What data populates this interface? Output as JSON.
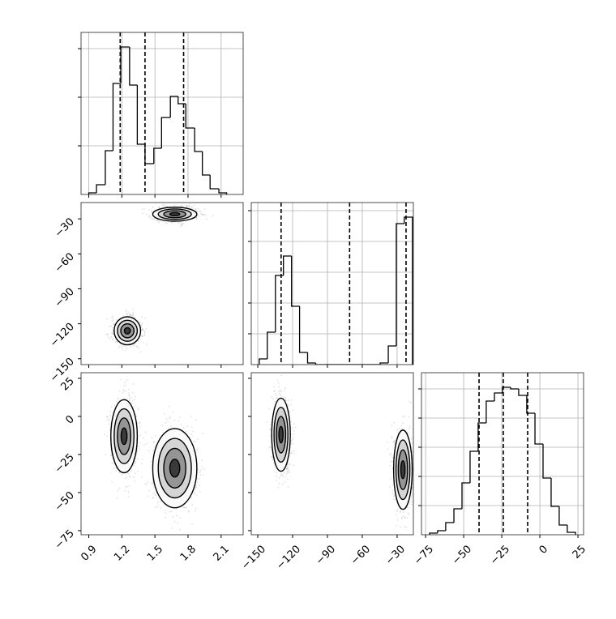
{
  "chart_data": [
    {
      "type": "histogram",
      "xlim": [
        0.83,
        2.3
      ],
      "ylim": [
        0,
        200
      ],
      "bins": [
        0.9,
        0.97,
        1.05,
        1.12,
        1.19,
        1.27,
        1.34,
        1.41,
        1.49,
        1.56,
        1.64,
        1.71,
        1.78,
        1.86,
        1.93,
        2.0,
        2.08,
        2.15
      ],
      "values": [
        2,
        12,
        54,
        137,
        182,
        135,
        62,
        38,
        57,
        95,
        121,
        112,
        82,
        53,
        24,
        7,
        2
      ],
      "quantiles": [
        1.185,
        1.41,
        1.76
      ],
      "xticks": [
        0.9,
        1.2,
        1.5,
        1.8,
        2.1
      ],
      "yticks": [
        60,
        120,
        180
      ],
      "grid": true,
      "color": "#000000"
    },
    {
      "type": "density",
      "xlim": [
        0.83,
        2.3
      ],
      "ylim": [
        -155,
        -16
      ],
      "components": [
        {
          "x": 1.25,
          "y": -126,
          "sx": 0.06,
          "sy": 6
        },
        {
          "x": 1.68,
          "y": -26,
          "sx": 0.1,
          "sy": 3
        }
      ],
      "xticks": [
        0.9,
        1.2,
        1.5,
        1.8,
        2.1
      ],
      "yticks": [
        {
          "value": -30,
          "label": "−30"
        },
        {
          "value": -60,
          "label": "−60"
        },
        {
          "value": -90,
          "label": "−90"
        },
        {
          "value": -120,
          "label": "−120"
        },
        {
          "value": -150,
          "label": "−150"
        }
      ],
      "ytick_labels": true,
      "color": "#000000"
    },
    {
      "type": "histogram",
      "xlim": [
        -155.6,
        -16
      ],
      "ylim": [
        0,
        200
      ],
      "bins": [
        -148.7,
        -141.8,
        -134.8,
        -127.9,
        -120.9,
        -114.0,
        -107.1,
        -100.1,
        -93.2,
        -86.2,
        -79.3,
        -72.4,
        -65.4,
        -58.5,
        -51.5,
        -44.6,
        -37.6,
        -30.7,
        -23.8,
        -16.8
      ],
      "values": [
        7,
        40,
        110,
        134,
        72,
        15,
        2,
        0,
        0,
        0,
        0,
        0,
        0,
        0,
        0,
        2,
        23,
        174,
        182
      ],
      "quantiles": [
        -129.9,
        -70.9,
        -22.3
      ],
      "xticks": [
        -150,
        -120,
        -90,
        -60,
        -30
      ],
      "yticks": [
        38,
        76,
        114,
        152,
        190
      ],
      "grid": true,
      "color": "#000000"
    },
    {
      "type": "density",
      "xlim": [
        0.83,
        2.3
      ],
      "ylim": [
        -77.7,
        28.7
      ],
      "components": [
        {
          "x": 1.22,
          "y": -13,
          "sx": 0.06,
          "sy": 12
        },
        {
          "x": 1.68,
          "y": -34,
          "sx": 0.1,
          "sy": 13
        }
      ],
      "xticks": [
        0.9,
        1.2,
        1.5,
        1.8,
        2.1
      ],
      "yticks": [
        25,
        0,
        {
          "value": -25,
          "label": "−25"
        },
        {
          "value": -50,
          "label": "−50"
        },
        {
          "value": -75,
          "label": "−75"
        }
      ],
      "xtick_labels": true,
      "ytick_labels": true,
      "color": "#000000"
    },
    {
      "type": "density",
      "xlim": [
        -155.6,
        -16
      ],
      "ylim": [
        -77.7,
        28.7
      ],
      "components": [
        {
          "x": -130,
          "y": -12,
          "sx": 4,
          "sy": 12
        },
        {
          "x": -25,
          "y": -35,
          "sx": 4,
          "sy": 13
        }
      ],
      "xticks": [
        {
          "value": -150,
          "label": "−150"
        },
        {
          "value": -120,
          "label": "−120"
        },
        {
          "value": -90,
          "label": "−90"
        },
        {
          "value": -60,
          "label": "−60"
        },
        {
          "value": -30,
          "label": "−30"
        }
      ],
      "yticks": [
        25,
        0,
        -25,
        -50,
        -75
      ],
      "xtick_labels": true,
      "color": "#000000"
    },
    {
      "type": "histogram",
      "xlim": [
        -77.7,
        28.7
      ],
      "ylim": [
        0,
        200
      ],
      "bins": [
        -72.4,
        -67.1,
        -61.8,
        -56.4,
        -51.1,
        -45.8,
        -40.5,
        -35.2,
        -29.8,
        -24.5,
        -19.2,
        -13.9,
        -8.6,
        -3.2,
        2.1,
        7.4,
        12.7,
        18.0,
        23.4
      ],
      "values": [
        2,
        5,
        15,
        32,
        64,
        103,
        138,
        165,
        175,
        182,
        180,
        172,
        150,
        112,
        70,
        35,
        12,
        3
      ],
      "quantiles": [
        -39.9,
        -24.0,
        -8.0
      ],
      "xticks": [
        {
          "value": -75,
          "label": "−75"
        },
        {
          "value": -50,
          "label": "−50"
        },
        {
          "value": -25,
          "label": "−25"
        },
        0,
        25
      ],
      "yticks": [
        36,
        72,
        108,
        144,
        180
      ],
      "xtick_labels": true,
      "grid": true,
      "color": "#000000"
    }
  ]
}
